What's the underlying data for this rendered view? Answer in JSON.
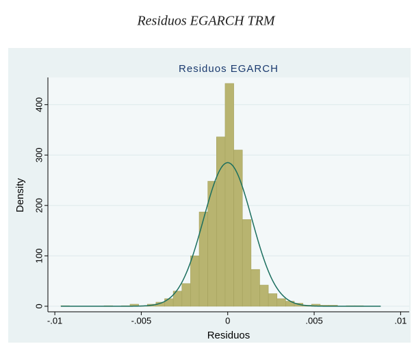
{
  "figure_caption": "Residuos EGARCH TRM",
  "chart_data": {
    "type": "histogram",
    "title": "Residuos EGARCH",
    "x_label": "Residuos",
    "y_label": "Density",
    "bins": [
      -0.00965,
      -0.00915,
      -0.00865,
      -0.00815,
      -0.00765,
      -0.00715,
      -0.00665,
      -0.00615,
      -0.00565,
      -0.00515,
      -0.00465,
      -0.00415,
      -0.00365,
      -0.00315,
      -0.00265,
      -0.00215,
      -0.00165,
      -0.00115,
      -0.00065,
      -0.00015,
      0.00035,
      0.00085,
      0.00135,
      0.00185,
      0.00235,
      0.00285,
      0.00335,
      0.00385,
      0.00435,
      0.00485,
      0.00535,
      0.00585,
      0.00635,
      0.00685,
      0.00735,
      0.00785,
      0.00835,
      0.00885
    ],
    "values": [
      1,
      0,
      0,
      0,
      0,
      1,
      0,
      1,
      4,
      1,
      4,
      8,
      15,
      30,
      45,
      100,
      187,
      248,
      336,
      442,
      310,
      172,
      73,
      42,
      25,
      15,
      10,
      6,
      2,
      4,
      2,
      2,
      0,
      1,
      1,
      0,
      0
    ],
    "color": "#b8b470",
    "density": {
      "mean": 0,
      "sd": 0.0014,
      "color": "#1a6e5e"
    },
    "xlim": [
      -0.0104,
      0.0105
    ],
    "ylim": [
      -11,
      454
    ],
    "xticks": [
      {
        "value": -0.01,
        "label": "-.01"
      },
      {
        "value": -0.005,
        "label": "-.005"
      },
      0,
      {
        "value": 0.005,
        "label": ".005"
      },
      {
        "value": 0.01,
        "label": ".01"
      }
    ],
    "yticks": [
      0,
      100,
      200,
      300,
      400
    ],
    "grid": true
  }
}
